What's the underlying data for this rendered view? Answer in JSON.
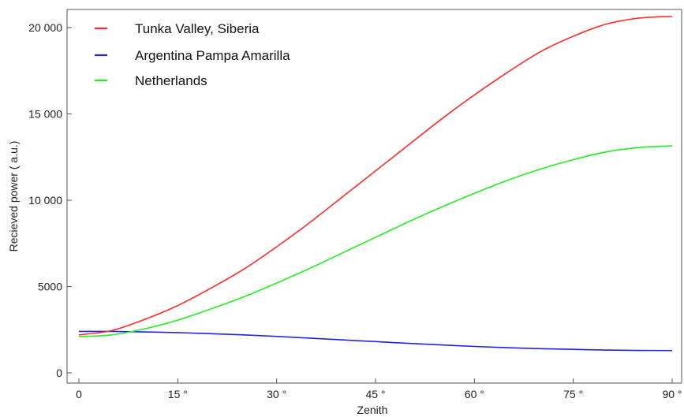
{
  "chart_data": {
    "type": "line",
    "xlabel": "Zenith",
    "ylabel": "Recieved power ( a.u.)",
    "xlim": [
      0,
      90
    ],
    "ylim": [
      0,
      21000
    ],
    "x_ticks": [
      {
        "value": 0,
        "label": "0"
      },
      {
        "value": 15,
        "label": "15 °"
      },
      {
        "value": 30,
        "label": "30 °"
      },
      {
        "value": 45,
        "label": "45 °"
      },
      {
        "value": 60,
        "label": "60 °"
      },
      {
        "value": 75,
        "label": "75 °"
      },
      {
        "value": 90,
        "label": "90 °"
      }
    ],
    "y_ticks": [
      {
        "value": 0,
        "label": "0"
      },
      {
        "value": 5000,
        "label": "5000"
      },
      {
        "value": 10000,
        "label": "10 000"
      },
      {
        "value": 15000,
        "label": "15 000"
      },
      {
        "value": 20000,
        "label": "20 000"
      }
    ],
    "grid": false,
    "legend_position": "top-left",
    "x": [
      0,
      5,
      10,
      15,
      20,
      25,
      30,
      35,
      40,
      45,
      50,
      55,
      60,
      65,
      70,
      75,
      80,
      85,
      90
    ],
    "series": [
      {
        "name": "Tunka Valley, Siberia",
        "color": "#ff2a2a",
        "values": [
          2200,
          2450,
          3100,
          3900,
          4900,
          6000,
          7300,
          8700,
          10200,
          11700,
          13200,
          14700,
          16100,
          17400,
          18600,
          19500,
          20200,
          20550,
          20650
        ]
      },
      {
        "name": "Argentina Pampa Amarilla",
        "color": "#2222e6",
        "values": [
          2400,
          2400,
          2370,
          2330,
          2270,
          2200,
          2110,
          2010,
          1910,
          1810,
          1710,
          1620,
          1530,
          1460,
          1400,
          1360,
          1320,
          1300,
          1290
        ]
      },
      {
        "name": "Netherlands",
        "color": "#22ee22",
        "values": [
          2100,
          2200,
          2550,
          3050,
          3700,
          4400,
          5200,
          6050,
          6950,
          7850,
          8750,
          9600,
          10400,
          11150,
          11800,
          12350,
          12800,
          13050,
          13150
        ]
      }
    ]
  }
}
